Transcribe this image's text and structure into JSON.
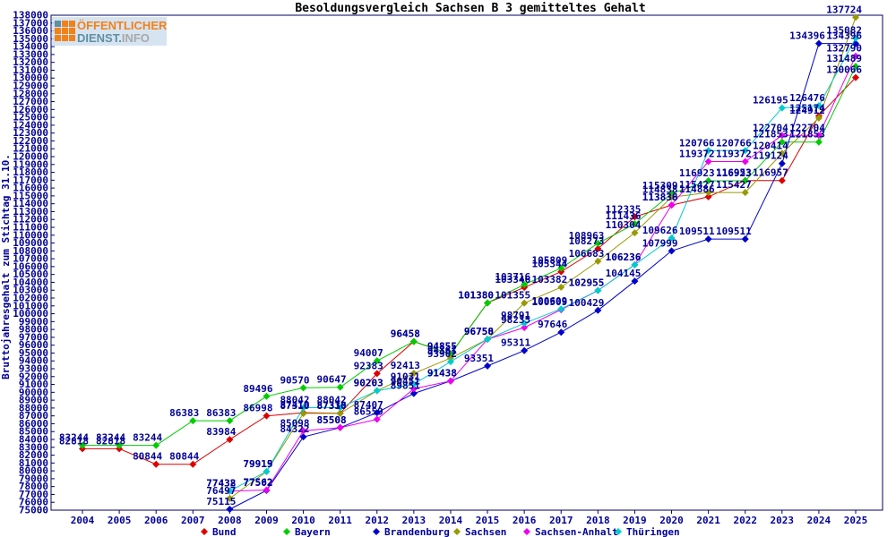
{
  "title": "Besoldungsvergleich Sachsen B 3 gemitteltes Gehalt",
  "y_axis_label": "Bruttojahresgehalt zum Stichtag 31.10.",
  "logo": {
    "line1": "ÖFFENTLICHER",
    "line2_strong": "DIENST.",
    "line2_light": "INFO",
    "bg_color": "#cfdff0",
    "orange": "#f28118",
    "teal": "#5f8fa0",
    "gray": "#a8a8a8"
  },
  "colors": {
    "frame": "#000066",
    "tick_text": "#000099",
    "data_label": "#000099",
    "title_text": "#000000",
    "legend_text": "#000099",
    "background": "#ffffff"
  },
  "chart_data": {
    "type": "line",
    "title": "Besoldungsvergleich Sachsen B 3 gemitteltes Gehalt",
    "xlabel": "",
    "ylabel": "Bruttojahresgehalt zum Stichtag 31.10.",
    "ylim": [
      75000,
      138000
    ],
    "ytick_step": 1000,
    "xlim": [
      2004,
      2025
    ],
    "x_ticks": [
      2004,
      2005,
      2006,
      2007,
      2008,
      2009,
      2010,
      2011,
      2012,
      2013,
      2014,
      2015,
      2016,
      2017,
      2018,
      2019,
      2020,
      2021,
      2022,
      2023,
      2024,
      2025
    ],
    "grid": false,
    "legend_position": "bottom",
    "point_labels": true,
    "series": [
      {
        "name": "Bund",
        "color": "#dd0000",
        "points": [
          [
            2004,
            82818
          ],
          [
            2005,
            82818
          ],
          [
            2006,
            80844
          ],
          [
            2007,
            80844
          ],
          [
            2008,
            83984
          ],
          [
            2009,
            86998
          ],
          [
            2010,
            87410
          ],
          [
            2011,
            87338
          ],
          [
            2012,
            92383
          ],
          [
            2013,
            96458
          ],
          [
            2014,
            94855
          ],
          [
            2015,
            101380
          ],
          [
            2016,
            103346
          ],
          [
            2017,
            105344
          ],
          [
            2018,
            108273
          ],
          [
            2019,
            112335
          ],
          [
            2020,
            113838
          ],
          [
            2021,
            114886
          ],
          [
            2022,
            116953
          ],
          [
            2023,
            116957
          ],
          [
            2024,
            125174
          ],
          [
            2025,
            130066
          ]
        ]
      },
      {
        "name": "Bayern",
        "color": "#00cc00",
        "points": [
          [
            2004,
            83244
          ],
          [
            2005,
            83244
          ],
          [
            2006,
            83244
          ],
          [
            2007,
            86383
          ],
          [
            2008,
            86383
          ],
          [
            2009,
            89496
          ],
          [
            2010,
            90570
          ],
          [
            2011,
            90647
          ],
          [
            2012,
            94007
          ],
          [
            2013,
            96458
          ],
          [
            2014,
            94855
          ],
          [
            2015,
            101380
          ],
          [
            2016,
            103716
          ],
          [
            2017,
            105809
          ],
          [
            2018,
            108963
          ],
          [
            2019,
            111436
          ],
          [
            2020,
            115309
          ],
          [
            2021,
            116923
          ],
          [
            2022,
            116923
          ],
          [
            2023,
            121853
          ],
          [
            2024,
            121853
          ],
          [
            2025,
            131489
          ]
        ]
      },
      {
        "name": "Brandenburg",
        "color": "#0000cc",
        "points": [
          [
            2008,
            75115
          ],
          [
            2009,
            77502
          ],
          [
            2010,
            84322
          ],
          [
            2011,
            85508
          ],
          [
            2012,
            87407
          ],
          [
            2013,
            89851
          ],
          [
            2014,
            91438
          ],
          [
            2015,
            93351
          ],
          [
            2016,
            95311
          ],
          [
            2017,
            97646
          ],
          [
            2018,
            100429
          ],
          [
            2019,
            104145
          ],
          [
            2020,
            107999
          ],
          [
            2021,
            109511
          ],
          [
            2022,
            109511
          ],
          [
            2023,
            119124
          ],
          [
            2024,
            134396
          ],
          [
            2025,
            134396
          ]
        ]
      },
      {
        "name": "Sachsen",
        "color": "#999900",
        "points": [
          [
            2008,
            76497
          ],
          [
            2009,
            79915
          ],
          [
            2010,
            87310
          ],
          [
            2011,
            87310
          ],
          [
            2012,
            90203
          ],
          [
            2013,
            92413
          ],
          [
            2014,
            94361
          ],
          [
            2015,
            96758
          ],
          [
            2016,
            101355
          ],
          [
            2017,
            103382
          ],
          [
            2018,
            106683
          ],
          [
            2019,
            110304
          ],
          [
            2020,
            114838
          ],
          [
            2021,
            115427
          ],
          [
            2022,
            115427
          ],
          [
            2023,
            120414
          ],
          [
            2024,
            124912
          ],
          [
            2025,
            137724
          ]
        ]
      },
      {
        "name": "Sachsen-Anhalt",
        "color": "#ee00ee",
        "points": [
          [
            2008,
            77432
          ],
          [
            2009,
            77562
          ],
          [
            2010,
            85098
          ],
          [
            2011,
            85508
          ],
          [
            2012,
            86559
          ],
          [
            2013,
            90451
          ],
          [
            2014,
            91438
          ],
          [
            2015,
            96750
          ],
          [
            2016,
            98235
          ],
          [
            2017,
            100509
          ],
          [
            2018,
            102955
          ],
          [
            2019,
            106236
          ],
          [
            2020,
            113836
          ],
          [
            2021,
            119372
          ],
          [
            2022,
            119372
          ],
          [
            2023,
            122704
          ],
          [
            2024,
            122704
          ],
          [
            2025,
            132790
          ]
        ]
      },
      {
        "name": "Thüringen",
        "color": "#00cccc",
        "points": [
          [
            2008,
            77438
          ],
          [
            2009,
            79919
          ],
          [
            2010,
            88042
          ],
          [
            2011,
            88042
          ],
          [
            2012,
            90203
          ],
          [
            2013,
            91031
          ],
          [
            2014,
            93902
          ],
          [
            2015,
            96758
          ],
          [
            2016,
            98791
          ],
          [
            2017,
            100609
          ],
          [
            2018,
            102955
          ],
          [
            2019,
            106236
          ],
          [
            2020,
            109626
          ],
          [
            2021,
            120766
          ],
          [
            2022,
            120766
          ],
          [
            2023,
            126195
          ],
          [
            2024,
            126476
          ],
          [
            2025,
            135082
          ]
        ]
      }
    ]
  }
}
